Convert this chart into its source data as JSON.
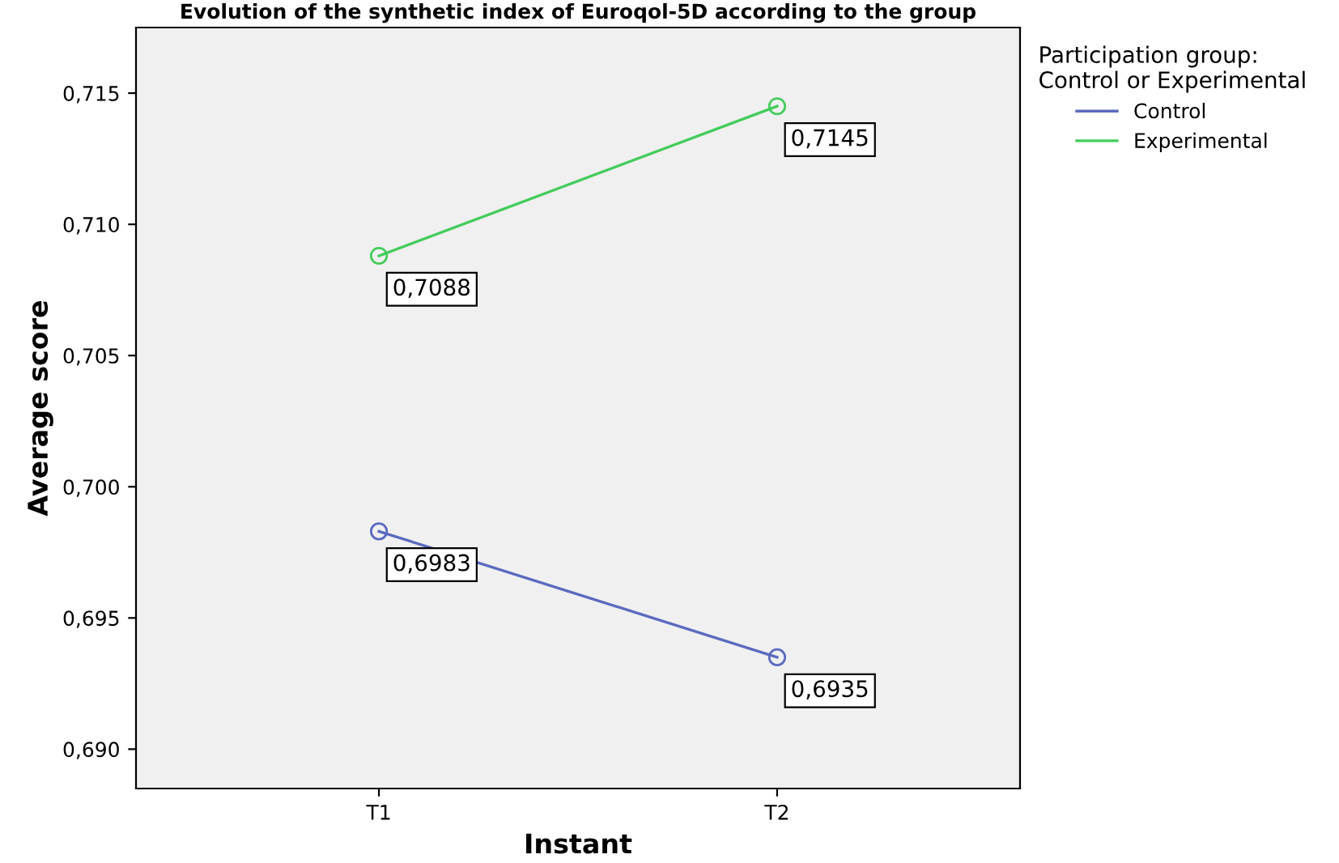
{
  "chart_data": {
    "type": "line",
    "title": "Evolution of the synthetic index of Euroqol-5D according to the group",
    "xlabel": "Instant",
    "ylabel": "Average score",
    "legend_title": "Participation group:\nControl or Experimental",
    "categories": [
      "T1",
      "T2"
    ],
    "series": [
      {
        "name": "Control",
        "color": "#5b6abf",
        "values": [
          0.6983,
          0.6935
        ],
        "value_labels": [
          "0,6983",
          "0,6935"
        ]
      },
      {
        "name": "Experimental",
        "color": "#44cc5c",
        "values": [
          0.7088,
          0.7145
        ],
        "value_labels": [
          "0,7088",
          "0,7145"
        ]
      }
    ],
    "ylim": [
      0.6885,
      0.7175
    ],
    "yticks": [
      {
        "value": 0.69,
        "label": "0,690"
      },
      {
        "value": 0.695,
        "label": "0,695"
      },
      {
        "value": 0.7,
        "label": "0,700"
      },
      {
        "value": 0.705,
        "label": "0,705"
      },
      {
        "value": 0.71,
        "label": "0,710"
      },
      {
        "value": 0.715,
        "label": "0,715"
      }
    ],
    "marker": "circle",
    "line_style": "solid",
    "grid": false,
    "legend": "top right"
  }
}
